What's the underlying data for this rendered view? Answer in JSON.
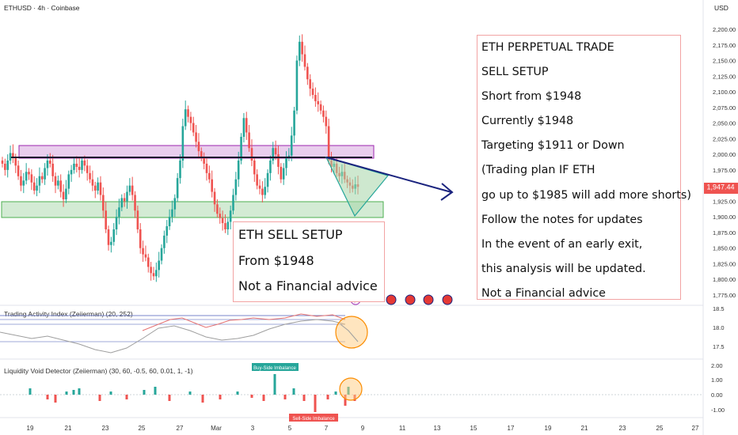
{
  "header": {
    "symbol": "ETHUSD",
    "timeframe": "4h",
    "exchange": "Coinbase",
    "title": "ETHUSD · 4h · Coinbase",
    "currency": "USD"
  },
  "price_axis": {
    "ticks": [
      "2,200.00",
      "2,175.00",
      "2,150.00",
      "2,125.00",
      "2,100.00",
      "2,075.00",
      "2,050.00",
      "2,025.00",
      "2,000.00",
      "1,975.00",
      "1,947.44",
      "1,925.00",
      "1,900.00",
      "1,875.00",
      "1,850.00",
      "1,825.00",
      "1,800.00",
      "1,775.00"
    ],
    "current_price": "1,947.44"
  },
  "date_axis": {
    "labels": [
      "19",
      "21",
      "23",
      "25",
      "27",
      "Mar",
      "3",
      "5",
      "7",
      "9",
      "11",
      "13",
      "15",
      "17",
      "19",
      "21",
      "23",
      "25",
      "27"
    ]
  },
  "annotations": {
    "right_box": {
      "lines": [
        "ETH PERPETUAL TRADE",
        "SELL SETUP",
        "Short from $1948",
        "Currently $1948",
        "Targeting $1911 or Down",
        "(Trading plan IF ETH",
        "go up to $1985 will add more shorts)",
        "Follow the notes for updates",
        "In the event of an early exit,",
        "this analysis will be updated.",
        "Not a Financial advice"
      ]
    },
    "mid_box": {
      "lines": [
        "ETH SELL SETUP",
        "From $1948",
        "Not a Financial advice"
      ]
    }
  },
  "indicators": {
    "tai": {
      "title": "Trading Activity Index (Zeiierman) (20, 252)",
      "ticks": [
        "18.5",
        "18.0",
        "17.5"
      ]
    },
    "lvd": {
      "title": "Liquidity Void Detector (Zeiierman) (30, 60, -0.5, 60, 0.01, 1, -1)",
      "ticks": [
        "2.00",
        "1.00",
        "0.00",
        "-1.00"
      ],
      "buy_label": "Buy-Side Imbalance",
      "sell_label": "Sell-Side Imbalance"
    }
  },
  "colors": {
    "up": "#26a69a",
    "down": "#ef5350",
    "resistance_zone": "#e1bee7",
    "support_zone": "#c8e6c9",
    "arrow": "#1a237e",
    "price_tag": "#ef5350"
  },
  "chart_data": {
    "type": "candlestick",
    "title": "ETHUSD · 4h · Coinbase",
    "ylim": [
      1765,
      2212
    ],
    "resistance_zone": [
      1996,
      2014
    ],
    "resistance_line": 2000,
    "support_zone": [
      1906,
      1925
    ],
    "current_price": 1947.44,
    "candles_close": [
      1985,
      1975,
      1990,
      2002,
      1995,
      1982,
      1965,
      1950,
      1958,
      1972,
      1968,
      1955,
      1942,
      1950,
      1965,
      1960,
      1978,
      1990,
      1985,
      1965,
      1950,
      1958,
      1940,
      1928,
      1945,
      1968,
      1975,
      1985,
      1980,
      1975,
      1990,
      1982,
      1970,
      1960,
      1950,
      1942,
      1955,
      1935,
      1910,
      1880,
      1855,
      1860,
      1880,
      1900,
      1915,
      1930,
      1925,
      1940,
      1950,
      1935,
      1910,
      1880,
      1850,
      1840,
      1835,
      1820,
      1810,
      1805,
      1815,
      1830,
      1850,
      1870,
      1885,
      1900,
      1912,
      1930,
      1962,
      1990,
      2045,
      2072,
      2060,
      2050,
      2035,
      2020,
      2005,
      1995,
      1985,
      1970,
      1960,
      1940,
      1920,
      1905,
      1898,
      1890,
      1880,
      1892,
      1910,
      1935,
      1960,
      1990,
      2028,
      2058,
      2035,
      2010,
      1990,
      1968,
      1950,
      1945,
      1935,
      1948,
      1970,
      1990,
      2010,
      2000,
      1980,
      1960,
      1978,
      1995,
      1998,
      2030,
      2070,
      2150,
      2180,
      2160,
      2140,
      2120,
      2105,
      2095,
      2085,
      2080,
      2070,
      2060,
      2045,
      1990,
      1980,
      1985,
      1970,
      1965,
      1972,
      1960,
      1955,
      1950,
      1945,
      1952,
      1948
    ],
    "candles_trend": [
      1985,
      1975,
      1990,
      2002,
      1995,
      1982,
      1965,
      1950,
      1958,
      1972,
      1968,
      1955,
      1942,
      1950,
      1965,
      1960,
      1978,
      1990,
      1985,
      1965,
      1950,
      1958,
      1940,
      1928,
      1945,
      1968,
      1975,
      1985,
      1980,
      1975,
      1990,
      1982,
      1970,
      1960,
      1950,
      1942,
      1955,
      1935,
      1910,
      1880,
      1855,
      1860,
      1880,
      1900,
      1915,
      1930,
      1925,
      1940,
      1950,
      1935,
      1910,
      1880,
      1850,
      1840,
      1835,
      1820,
      1810,
      1805,
      1815,
      1830,
      1850,
      1870,
      1885,
      1900,
      1912,
      1930,
      1962,
      1990,
      2045,
      2072,
      2060,
      2050,
      2035,
      2020,
      2005,
      1995,
      1985,
      1970,
      1960,
      1940,
      1920,
      1905,
      1898,
      1890,
      1880,
      1892,
      1910,
      1935,
      1960,
      1990,
      2028,
      2058,
      2035,
      2010,
      1990,
      1968,
      1950,
      1945,
      1935,
      1948,
      1970,
      1990,
      2010,
      2000,
      1980,
      1960,
      1978,
      1995,
      1998,
      2030,
      2070,
      2150,
      2180,
      2160,
      2140,
      2120,
      2105,
      2095,
      2085,
      2080,
      2070,
      2060,
      2045,
      1990,
      1980,
      1985,
      1970,
      1965,
      1972,
      1960,
      1955,
      1950,
      1945,
      1952,
      1948
    ]
  }
}
